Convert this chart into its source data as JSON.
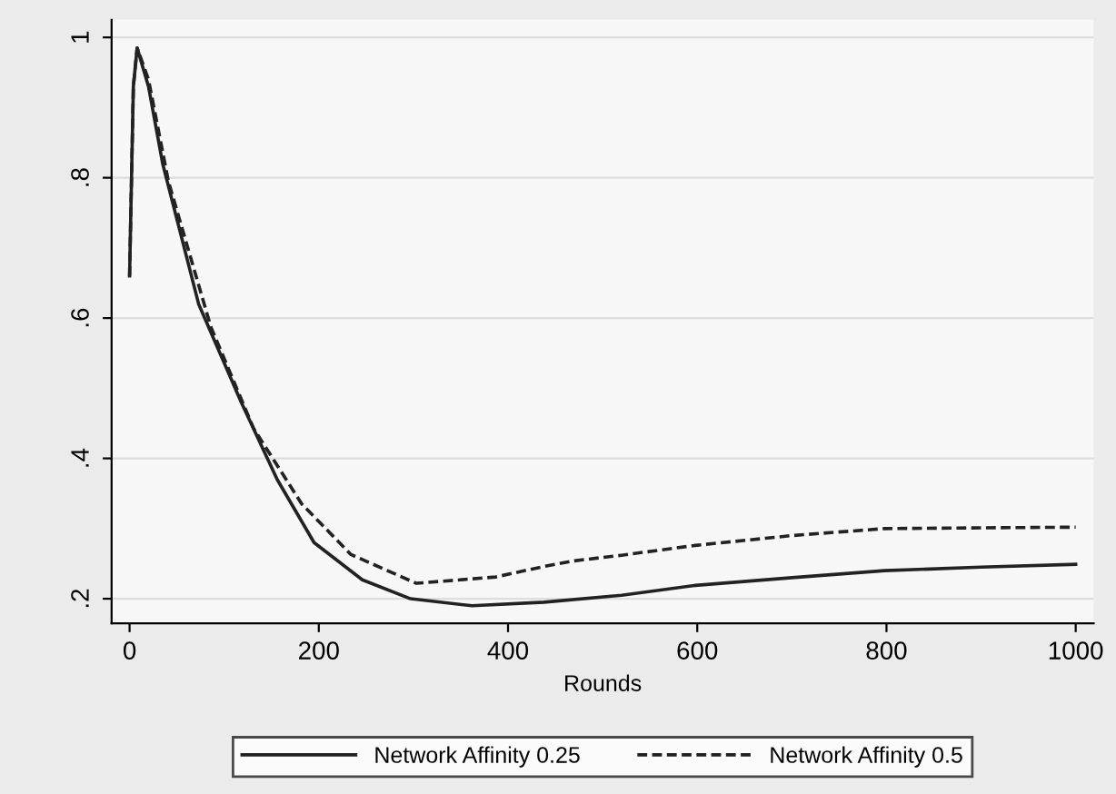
{
  "chart_data": {
    "type": "line",
    "xlabel": "Rounds",
    "xlim": [
      -19,
      1019
    ],
    "ylim": [
      0.165,
      1.025
    ],
    "xticks": [
      0,
      200,
      400,
      600,
      800,
      1000
    ],
    "yticks": [
      {
        "value": 0.2,
        "label": ".2"
      },
      {
        "value": 0.4,
        "label": ".4"
      },
      {
        "value": 0.6,
        "label": ".6"
      },
      {
        "value": 0.8,
        "label": ".8"
      },
      {
        "value": 1,
        "label": "1"
      }
    ],
    "grid": "y",
    "legend": "bottom",
    "series": [
      {
        "name": "Network Affinity 0.25",
        "color": "#222222",
        "line_style": "solid",
        "x": [
          0,
          4,
          8,
          20,
          35,
          73,
          118,
          156,
          195,
          246,
          297,
          362,
          438,
          520,
          598,
          700,
          798,
          900,
          1000
        ],
        "values": [
          0.66,
          0.93,
          0.985,
          0.93,
          0.82,
          0.62,
          0.48,
          0.37,
          0.28,
          0.227,
          0.2,
          0.19,
          0.195,
          0.205,
          0.219,
          0.23,
          0.24,
          0.245,
          0.249
        ]
      },
      {
        "name": "Network Affinity 0.5",
        "color": "#222222",
        "line_style": "dashed",
        "x": [
          0,
          4,
          8,
          20,
          41,
          86,
          131,
          182,
          234,
          303,
          387,
          438,
          470,
          520,
          598,
          700,
          798,
          900,
          1000
        ],
        "values": [
          0.66,
          0.93,
          0.985,
          0.94,
          0.795,
          0.587,
          0.443,
          0.335,
          0.263,
          0.222,
          0.231,
          0.246,
          0.254,
          0.262,
          0.276,
          0.29,
          0.3,
          0.301,
          0.302
        ]
      }
    ]
  }
}
